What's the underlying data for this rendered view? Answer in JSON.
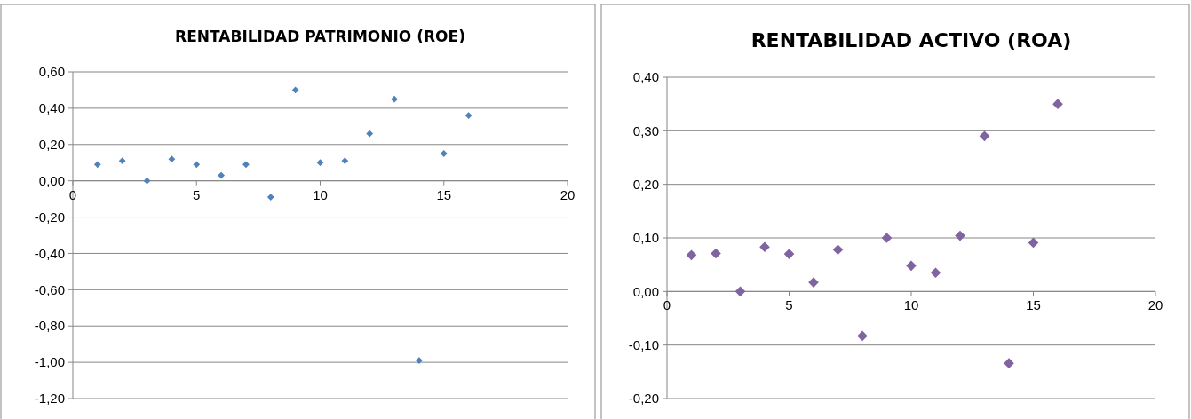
{
  "chart_data": [
    {
      "type": "scatter",
      "title": "RENTABILIDAD PATRIMONIO (ROE)",
      "marker": "diamond",
      "grid": "y",
      "x": [
        1,
        2,
        3,
        4,
        5,
        6,
        7,
        8,
        9,
        10,
        11,
        12,
        13,
        14,
        15,
        16
      ],
      "series": [
        {
          "color": "#4f81bd",
          "values": [
            0.09,
            0.11,
            0.0,
            0.12,
            0.09,
            0.03,
            0.09,
            -0.09,
            0.5,
            0.1,
            0.11,
            0.26,
            0.45,
            -0.99,
            0.15,
            0.36
          ]
        }
      ],
      "xlim": [
        0,
        20
      ],
      "xticks": [
        0,
        5,
        10,
        15,
        20
      ],
      "ylim": [
        -1.2,
        0.6
      ],
      "yticks": [
        {
          "value": -1.2,
          "label": "-1,20"
        },
        {
          "value": -1.0,
          "label": "-1,00"
        },
        {
          "value": -0.8,
          "label": "-0,80"
        },
        {
          "value": -0.6,
          "label": "-0,60"
        },
        {
          "value": -0.4,
          "label": "-0,40"
        },
        {
          "value": -0.2,
          "label": "-0,20"
        },
        {
          "value": 0,
          "label": "0,00"
        },
        {
          "value": 0.2,
          "label": "0,20"
        },
        {
          "value": 0.4,
          "label": "0,40"
        },
        {
          "value": 0.6,
          "label": "0,60"
        }
      ]
    },
    {
      "type": "scatter",
      "title": "RENTABILIDAD  ACTIVO (ROA)",
      "marker": "diamond",
      "grid": "y",
      "x": [
        1,
        2,
        3,
        4,
        5,
        6,
        7,
        8,
        9,
        10,
        11,
        12,
        13,
        14,
        15,
        16
      ],
      "series": [
        {
          "color": "#8064a2",
          "values": [
            0.068,
            0.071,
            0.0,
            0.083,
            0.07,
            0.017,
            0.078,
            -0.083,
            0.1,
            0.048,
            0.035,
            0.104,
            0.29,
            -0.134,
            0.091,
            0.35
          ]
        }
      ],
      "xlim": [
        0,
        20
      ],
      "xticks": [
        0,
        5,
        10,
        15,
        20
      ],
      "ylim": [
        -0.2,
        0.4
      ],
      "yticks": [
        {
          "value": -0.2,
          "label": "-0,20"
        },
        {
          "value": -0.1,
          "label": "-0,10"
        },
        {
          "value": 0,
          "label": "0,00"
        },
        {
          "value": 0.1,
          "label": "0,10"
        },
        {
          "value": 0.2,
          "label": "0,20"
        },
        {
          "value": 0.3,
          "label": "0,30"
        },
        {
          "value": 0.4,
          "label": "0,40"
        }
      ]
    }
  ]
}
